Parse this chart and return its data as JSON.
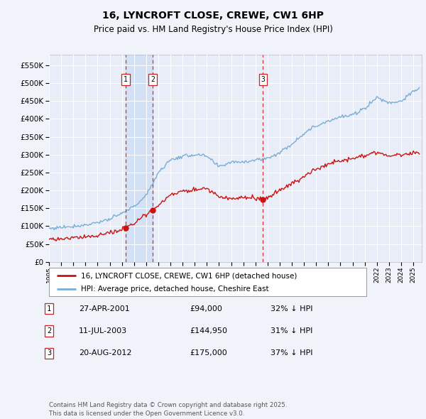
{
  "title": "16, LYNCROFT CLOSE, CREWE, CW1 6HP",
  "subtitle": "Price paid vs. HM Land Registry's House Price Index (HPI)",
  "legend_line1": "16, LYNCROFT CLOSE, CREWE, CW1 6HP (detached house)",
  "legend_line2": "HPI: Average price, detached house, Cheshire East",
  "fig_bg": "#f0f4fa",
  "plot_bg": "#e8edf8",
  "grid_color": "#ffffff",
  "red_color": "#cc1111",
  "blue_color": "#7aaed6",
  "shade_color": "#c8d8f0",
  "ylim": [
    0,
    580000
  ],
  "yticks": [
    0,
    50000,
    100000,
    150000,
    200000,
    250000,
    300000,
    350000,
    400000,
    450000,
    500000,
    550000
  ],
  "sales": [
    {
      "num": 1,
      "x_year": 2001.32,
      "price": 94000,
      "pct": "32%",
      "label": "27-APR-2001",
      "price_label": "£94,000"
    },
    {
      "num": 2,
      "x_year": 2003.53,
      "price": 144950,
      "pct": "31%",
      "label": "11-JUL-2003",
      "price_label": "£144,950"
    },
    {
      "num": 3,
      "x_year": 2012.63,
      "price": 175000,
      "pct": "37%",
      "label": "20-AUG-2012",
      "price_label": "£175,000"
    }
  ],
  "footer": "Contains HM Land Registry data © Crown copyright and database right 2025.\nThis data is licensed under the Open Government Licence v3.0.",
  "xmin": 1995.0,
  "xmax": 2025.7
}
